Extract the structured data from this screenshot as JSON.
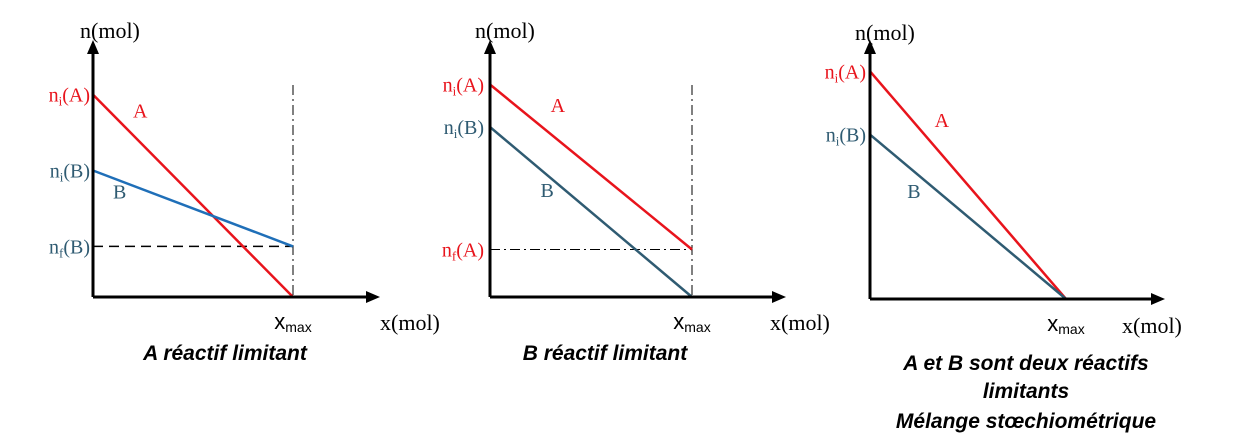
{
  "colors": {
    "axis": "#000000",
    "red": "#e8141c",
    "blue": "#1f6fb8",
    "slate": "#2f5b72",
    "guide": "#000000"
  },
  "chart_data": [
    {
      "type": "line",
      "ylabel": "n(mol)",
      "xlabel": "x(mol)",
      "x_tick": "xmax",
      "caption": [
        "A réactif limitant"
      ],
      "y_ticks": [
        {
          "base": "n",
          "sub": "i",
          "species": "(A)",
          "color": "red",
          "value": 0.8
        },
        {
          "base": "n",
          "sub": "i",
          "species": "(B)",
          "color": "slate",
          "value": 0.5
        },
        {
          "base": "n",
          "sub": "f",
          "species": "(B)",
          "color": "slate",
          "value": 0.2
        }
      ],
      "series": [
        {
          "name": "A",
          "color": "red",
          "label_pos": [
            0.2,
            0.71
          ],
          "points": [
            [
              0,
              0.8
            ],
            [
              1,
              0
            ]
          ]
        },
        {
          "name": "B",
          "color": "blue",
          "label_pos": [
            0.1,
            0.39
          ],
          "points": [
            [
              0,
              0.5
            ],
            [
              1,
              0.2
            ]
          ]
        }
      ],
      "guides": [
        {
          "kind": "hline",
          "y": 0.2,
          "style": "dash"
        },
        {
          "kind": "vline",
          "x": 1,
          "style": "dashdot"
        }
      ],
      "xlim": [
        0,
        1.38
      ],
      "ylim": [
        0,
        1
      ]
    },
    {
      "type": "line",
      "ylabel": "n(mol)",
      "xlabel": "x(mol)",
      "x_tick": "xmax",
      "caption": [
        "B réactif limitant"
      ],
      "y_ticks": [
        {
          "base": "n",
          "sub": "i",
          "species": "(A)",
          "color": "red",
          "value": 0.85
        },
        {
          "base": "n",
          "sub": "i",
          "species": "(B)",
          "color": "slate",
          "value": 0.68
        },
        {
          "base": "n",
          "sub": "f",
          "species": "(A)",
          "color": "red",
          "value": 0.19
        }
      ],
      "series": [
        {
          "name": "A",
          "color": "red",
          "label_pos": [
            0.3,
            0.74
          ],
          "points": [
            [
              0,
              0.85
            ],
            [
              1,
              0.19
            ]
          ]
        },
        {
          "name": "B",
          "color": "slate",
          "label_pos": [
            0.25,
            0.4
          ],
          "points": [
            [
              0,
              0.68
            ],
            [
              1,
              0
            ]
          ]
        }
      ],
      "guides": [
        {
          "kind": "hline",
          "y": 0.19,
          "style": "dashdot"
        },
        {
          "kind": "vline",
          "x": 1,
          "style": "dashdot"
        }
      ],
      "xlim": [
        0,
        1.45
      ],
      "ylim": [
        0,
        1
      ]
    },
    {
      "type": "line",
      "ylabel": "n(mol)",
      "xlabel": "x(mol)",
      "x_tick": "xmax",
      "caption": [
        "A et B sont deux réactifs",
        "limitants",
        "Mélange stœchiométrique"
      ],
      "y_ticks": [
        {
          "base": "n",
          "sub": "i",
          "species": "(A)",
          "color": "red",
          "value": 0.9
        },
        {
          "base": "n",
          "sub": "i",
          "species": "(B)",
          "color": "slate",
          "value": 0.65
        }
      ],
      "series": [
        {
          "name": "A",
          "color": "red",
          "label_pos": [
            0.33,
            0.68
          ],
          "points": [
            [
              0,
              0.9
            ],
            [
              1,
              0
            ]
          ]
        },
        {
          "name": "B",
          "color": "slate",
          "label_pos": [
            0.19,
            0.4
          ],
          "points": [
            [
              0,
              0.65
            ],
            [
              1,
              0
            ]
          ]
        }
      ],
      "guides": [],
      "xlim": [
        0,
        1.52
      ],
      "ylim": [
        0,
        1
      ]
    }
  ]
}
